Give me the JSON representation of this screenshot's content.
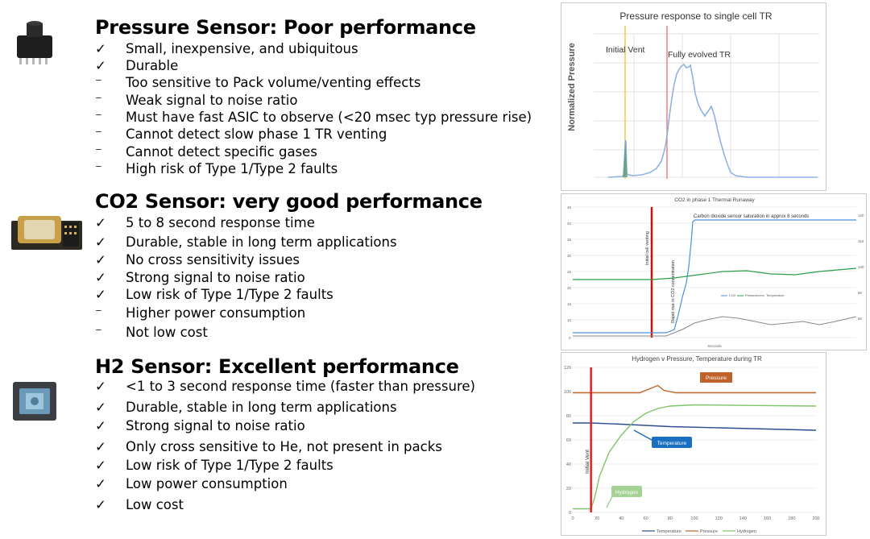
{
  "sections": [
    {
      "title": "Pressure Sensor: Poor performance",
      "items": [
        {
          "mark": "✓",
          "text": "Small, inexpensive, and ubiquitous"
        },
        {
          "mark": "✓",
          "text": "Durable"
        },
        {
          "mark": "⁻",
          "text": "Too sensitive to Pack volume/venting effects"
        },
        {
          "mark": "⁻",
          "text": "Weak signal to noise ratio"
        },
        {
          "mark": "⁻",
          "text": "Must have fast ASIC to observe (<20 msec typ pressure rise)"
        },
        {
          "mark": "⁻",
          "text": "Cannot detect slow phase 1 TR venting"
        },
        {
          "mark": "⁻",
          "text": "Cannot detect specific gases"
        },
        {
          "mark": "⁻",
          "text": "High risk of Type 1/Type 2 faults"
        }
      ]
    },
    {
      "title": "CO2 Sensor: very good performance",
      "items": [
        {
          "mark": "✓",
          "text": "5 to 8 second response time"
        },
        {
          "mark": "✓",
          "text": "Durable, stable in long term applications"
        },
        {
          "mark": "✓",
          "text": "No cross sensitivity issues"
        },
        {
          "mark": "✓",
          "text": "Strong signal to noise ratio"
        },
        {
          "mark": "✓",
          "text": "Low risk of Type 1/Type 2 faults"
        },
        {
          "mark": "⁻",
          "text": "Higher power consumption"
        },
        {
          "mark": "⁻",
          "text": "Not low cost"
        }
      ]
    },
    {
      "title": "H2 Sensor: Excellent performance",
      "items": [
        {
          "mark": "✓",
          "text": "<1 to 3 second response time (faster than pressure)"
        },
        {
          "mark": "✓",
          "text": "Durable, stable in long term applications"
        },
        {
          "mark": "✓",
          "text": "Strong signal to noise ratio"
        },
        {
          "mark": "✓",
          "text": "Only cross sensitive to He, not present in packs"
        },
        {
          "mark": "✓",
          "text": "Low risk of Type 1/Type 2 faults"
        },
        {
          "mark": "✓",
          "text": "Low power consumption"
        },
        {
          "mark": "✓",
          "text": "Low cost"
        }
      ]
    }
  ],
  "chart_data": [
    {
      "type": "line",
      "title": "Pressure response to single cell TR",
      "ylabel": "Normalized Pressure",
      "xlabel": "",
      "annotations": [
        "Initial Vent",
        "Fully evolved TR"
      ],
      "vlines": [
        {
          "label": "Initial Vent",
          "color": "#f5c84c"
        },
        {
          "label": "Fully evolved TR",
          "color": "#f08080"
        }
      ],
      "series": [
        {
          "color": "#8db3e2",
          "note": "normalized pressure trace"
        }
      ]
    },
    {
      "type": "line",
      "title": "CO2 in phase 1 Thermal Runaway",
      "xlabel": "Seconds",
      "annotations": [
        "Carbon dioxide sensor saturation in approx 8 seconds",
        "Initial cell venting",
        "Rapid rise in CO2 concentration"
      ],
      "legend": [
        "CO2",
        "Pressure",
        "Temperature"
      ],
      "series_colors": [
        "#4a90d9",
        "#2a9d4a",
        "#888888"
      ]
    },
    {
      "type": "line",
      "title": "Hydrogen  v Pressure, Temperature during TR",
      "x": [
        0,
        20,
        40,
        60,
        80,
        100,
        120,
        140,
        160,
        180,
        200
      ],
      "y_ticks": [
        0,
        20,
        40,
        60,
        80,
        100,
        120
      ],
      "ylim": [
        0,
        120
      ],
      "xlim": [
        0,
        200
      ],
      "annotations": [
        "Initial Vent",
        "Pressure",
        "Temperature",
        "Hydrogen"
      ],
      "legend": [
        "Temperature",
        "Pressure",
        "Hydrogen"
      ],
      "series": [
        {
          "name": "Temperature",
          "color": "#2e4d8f",
          "points": [
            [
              0,
              74
            ],
            [
              15,
              74
            ],
            [
              40,
              73
            ],
            [
              80,
              71
            ],
            [
              120,
              70
            ],
            [
              160,
              69
            ],
            [
              200,
              68
            ]
          ]
        },
        {
          "name": "Pressure",
          "color": "#c0622b",
          "points": [
            [
              0,
              99
            ],
            [
              55,
              99
            ],
            [
              65,
              103
            ],
            [
              70,
              105
            ],
            [
              75,
              101
            ],
            [
              85,
              99
            ],
            [
              200,
              99
            ]
          ]
        },
        {
          "name": "Hydrogen",
          "color": "#7fc46b",
          "points": [
            [
              0,
              3
            ],
            [
              15,
              3
            ],
            [
              18,
              12
            ],
            [
              22,
              30
            ],
            [
              30,
              50
            ],
            [
              40,
              64
            ],
            [
              50,
              75
            ],
            [
              60,
              82
            ],
            [
              70,
              86
            ],
            [
              80,
              88
            ],
            [
              100,
              89
            ],
            [
              200,
              88
            ]
          ]
        }
      ],
      "vline": {
        "x": 15,
        "color": "#e02020",
        "label": "Initial Vent"
      }
    }
  ]
}
